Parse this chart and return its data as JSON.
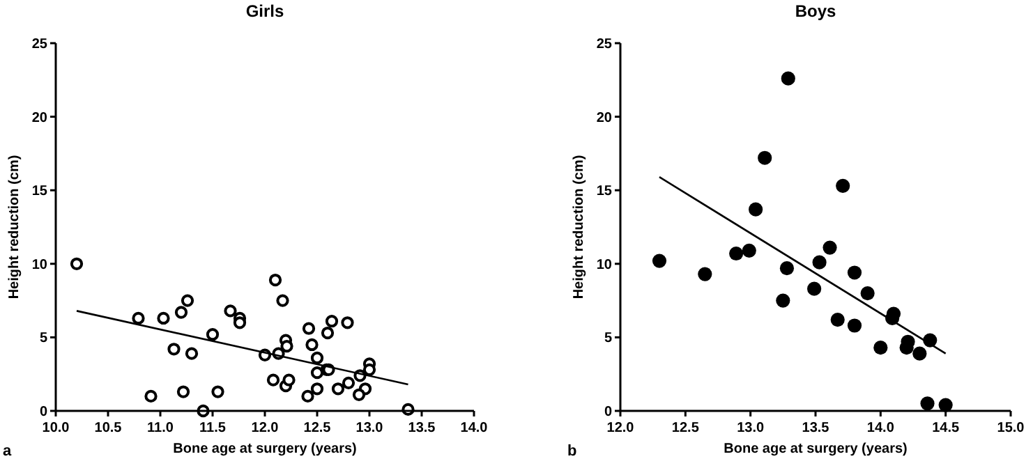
{
  "chart_data": [
    {
      "type": "scatter",
      "title": "Girls",
      "xlabel": "Bone age at surgery (years)",
      "ylabel": "Height reduction (cm)",
      "annotations": [
        "a"
      ],
      "xlim": [
        10,
        14
      ],
      "xticks": [
        {
          "value": 10,
          "label": "10.0"
        },
        {
          "value": 10.5,
          "label": "10.5"
        },
        {
          "value": 11,
          "label": "11.0"
        },
        {
          "value": 11.5,
          "label": "11.5"
        },
        {
          "value": 12,
          "label": "12.0"
        },
        {
          "value": 12.5,
          "label": "12.5"
        },
        {
          "value": 13,
          "label": "13.0"
        },
        {
          "value": 13.5,
          "label": "13.5"
        },
        {
          "value": 14,
          "label": "14.0"
        }
      ],
      "ylim": [
        0,
        25
      ],
      "yticks": [
        0,
        5,
        10,
        15,
        20,
        25
      ],
      "series": [
        {
          "color": "#000000",
          "marker": "circle",
          "x": [
            10.2,
            10.79,
            11.03,
            11.2,
            11.26,
            11.13,
            11.3,
            10.91,
            11.22,
            11.41,
            11.55,
            11.5,
            11.67,
            11.76,
            11.76,
            12.0,
            12.1,
            12.17,
            12.13,
            12.2,
            12.21,
            12.08,
            12.2,
            12.23,
            12.42,
            12.45,
            12.5,
            12.5,
            12.59,
            12.61,
            12.6,
            12.64,
            12.79,
            12.41,
            12.5,
            12.7,
            12.8,
            12.91,
            12.96,
            12.9,
            13.0,
            13.0,
            13.37
          ],
          "values": [
            10.0,
            6.3,
            6.3,
            6.7,
            7.5,
            4.2,
            3.9,
            1.0,
            1.3,
            0.0,
            1.3,
            5.2,
            6.8,
            6.3,
            6.0,
            3.8,
            8.9,
            7.5,
            3.9,
            4.8,
            4.4,
            2.1,
            1.7,
            2.1,
            5.6,
            4.5,
            3.6,
            2.6,
            2.8,
            2.8,
            5.3,
            6.1,
            6.0,
            1.0,
            1.5,
            1.5,
            1.9,
            2.4,
            1.5,
            1.1,
            3.2,
            2.8,
            0.1
          ]
        },
        {
          "type": "line",
          "color": "#000000",
          "x": [
            10.2,
            13.37
          ],
          "values": [
            6.8,
            1.8
          ]
        }
      ]
    },
    {
      "type": "scatter",
      "title": "Boys",
      "xlabel": "Bone age at surgery (years)",
      "ylabel": "Height reduction (cm)",
      "annotations": [
        "b"
      ],
      "xlim": [
        12,
        15
      ],
      "xticks": [
        {
          "value": 12,
          "label": "12.0"
        },
        {
          "value": 12.5,
          "label": "12.5"
        },
        {
          "value": 13,
          "label": "13.0"
        },
        {
          "value": 13.5,
          "label": "13.5"
        },
        {
          "value": 14,
          "label": "14.0"
        },
        {
          "value": 14.5,
          "label": "14.5"
        },
        {
          "value": 15,
          "label": "15.0"
        }
      ],
      "ylim": [
        0,
        25
      ],
      "yticks": [
        0,
        5,
        10,
        15,
        20,
        25
      ],
      "series": [
        {
          "color": "#000000",
          "marker": "circle",
          "x": [
            12.3,
            12.89,
            12.99,
            13.04,
            13.11,
            13.29,
            13.71,
            13.61,
            12.65,
            13.28,
            13.25,
            13.53,
            13.49,
            13.67,
            13.8,
            13.8,
            13.9,
            14.1,
            14.09,
            14.0,
            14.21,
            14.2,
            14.3,
            14.38,
            14.36,
            14.5
          ],
          "values": [
            10.2,
            10.7,
            10.9,
            13.7,
            17.2,
            22.6,
            15.3,
            11.1,
            9.3,
            9.7,
            7.5,
            10.1,
            8.3,
            6.2,
            9.4,
            5.8,
            8.0,
            6.6,
            6.3,
            4.3,
            4.7,
            4.3,
            3.9,
            4.8,
            0.5,
            0.4
          ]
        },
        {
          "type": "line",
          "color": "#000000",
          "x": [
            12.3,
            14.5
          ],
          "values": [
            15.9,
            3.9
          ]
        }
      ]
    }
  ]
}
